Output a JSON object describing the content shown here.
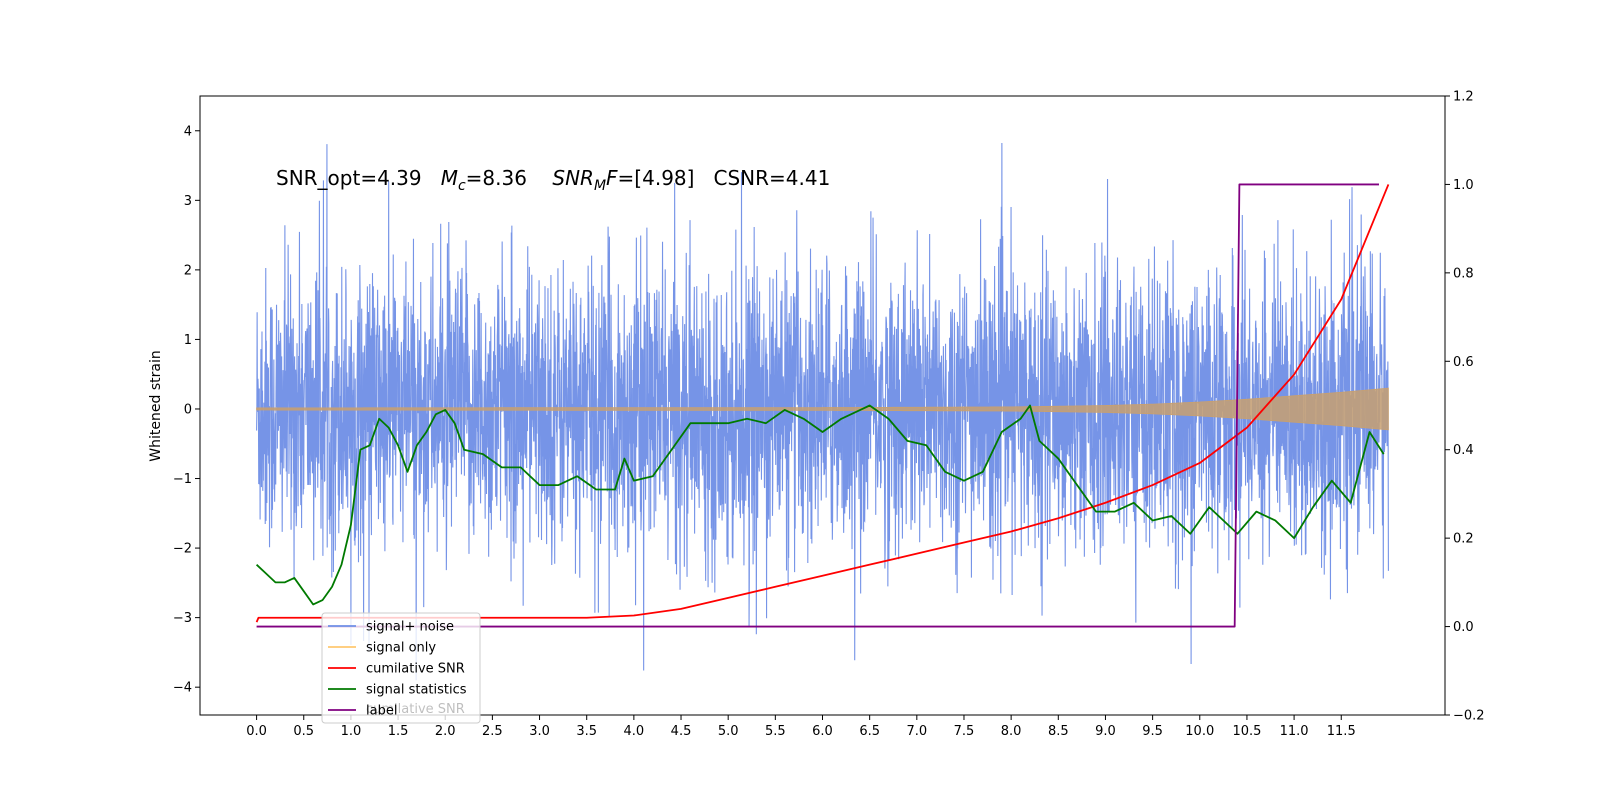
{
  "chart_data": {
    "type": "line",
    "title": "",
    "annotation": {
      "parts": [
        "SNR_opt=4.39   ",
        "M",
        "c",
        "=8.36    ",
        "SNR",
        "M",
        "F",
        "=[4.98]   CSNR=4.41"
      ]
    },
    "ylabel": "Whitened strain",
    "xlim": [
      -0.6,
      12.6
    ],
    "ylim": [
      -4.4,
      4.5
    ],
    "y2lim": [
      -0.2,
      1.2
    ],
    "x_ticks": [
      0.0,
      0.5,
      1.0,
      1.5,
      2.0,
      2.5,
      3.0,
      3.5,
      4.0,
      4.5,
      5.0,
      5.5,
      6.0,
      6.5,
      7.0,
      7.5,
      8.0,
      8.5,
      9.0,
      9.5,
      10.0,
      10.5,
      11.0,
      11.5
    ],
    "x_tick_labels": [
      "0.0",
      "0.5",
      "1.0",
      "1.5",
      "2.0",
      "2.5",
      "3.0",
      "3.5",
      "4.0",
      "4.5",
      "5.0",
      "5.5",
      "6.0",
      "6.5",
      "7.0",
      "7.5",
      "8.0",
      "8.5",
      "9.0",
      "9.5",
      "10.0",
      "10.5",
      "11.0",
      "11.5"
    ],
    "y_ticks": [
      -4,
      -3,
      -2,
      -1,
      0,
      1,
      2,
      3,
      4
    ],
    "y_tick_labels": [
      "−4",
      "−3",
      "−2",
      "−1",
      "0",
      "1",
      "2",
      "3",
      "4"
    ],
    "y2_ticks": [
      -0.2,
      0.0,
      0.2,
      0.4,
      0.6,
      0.8,
      1.0,
      1.2
    ],
    "y2_tick_labels": [
      "−0.2",
      "0.0",
      "0.2",
      "0.4",
      "0.6",
      "0.8",
      "1.0",
      "1.2"
    ],
    "grid": false,
    "legend_position": "bottom-left",
    "legend": [
      {
        "name": "signal+ noise",
        "color": "#6f8ee6"
      },
      {
        "name": "signal only",
        "color": "#ffc870"
      },
      {
        "name": "cumilative SNR",
        "color": "#ff0000"
      },
      {
        "name": "signal statistics",
        "color": "#007a00"
      },
      {
        "name": "label",
        "color": "#800080"
      }
    ],
    "legend_hidden_text": "cumilative SNR",
    "series": [
      {
        "name": "signal+ noise",
        "axis": "left",
        "color": "#6f8ee6",
        "style": "noise",
        "x_range": [
          0.0,
          12.0
        ],
        "value_range": [
          -3.9,
          4.1
        ]
      },
      {
        "name": "signal only",
        "axis": "left",
        "color": "#c8a070",
        "style": "chirp-envelope",
        "x": [
          0.0,
          4.0,
          6.0,
          7.0,
          8.0,
          8.5,
          9.0,
          9.5,
          10.0,
          10.5,
          11.0,
          11.5,
          12.0
        ],
        "amplitude": [
          0.015,
          0.02,
          0.02,
          0.025,
          0.03,
          0.04,
          0.05,
          0.07,
          0.1,
          0.14,
          0.19,
          0.24,
          0.3
        ]
      },
      {
        "name": "cumilative SNR",
        "axis": "right",
        "color": "#ff0000",
        "x": [
          0.0,
          0.02,
          1.0,
          2.0,
          3.0,
          3.5,
          4.0,
          4.5,
          5.0,
          5.5,
          6.0,
          6.5,
          7.0,
          7.5,
          8.0,
          8.5,
          9.0,
          9.5,
          10.0,
          10.5,
          11.0,
          11.5,
          12.0
        ],
        "values": [
          0.01,
          0.02,
          0.02,
          0.02,
          0.02,
          0.02,
          0.025,
          0.04,
          0.065,
          0.09,
          0.115,
          0.14,
          0.165,
          0.19,
          0.215,
          0.245,
          0.28,
          0.32,
          0.37,
          0.45,
          0.57,
          0.74,
          1.0
        ]
      },
      {
        "name": "signal statistics",
        "axis": "right",
        "color": "#007a00",
        "x": [
          0.0,
          0.1,
          0.2,
          0.3,
          0.4,
          0.5,
          0.6,
          0.7,
          0.8,
          0.9,
          1.0,
          1.1,
          1.2,
          1.3,
          1.4,
          1.5,
          1.6,
          1.7,
          1.8,
          1.9,
          2.0,
          2.1,
          2.2,
          2.4,
          2.6,
          2.8,
          3.0,
          3.2,
          3.4,
          3.6,
          3.8,
          3.9,
          4.0,
          4.2,
          4.4,
          4.6,
          4.8,
          5.0,
          5.2,
          5.4,
          5.6,
          5.8,
          6.0,
          6.2,
          6.4,
          6.5,
          6.7,
          6.9,
          7.1,
          7.3,
          7.5,
          7.7,
          7.9,
          8.1,
          8.2,
          8.3,
          8.5,
          8.7,
          8.9,
          9.1,
          9.3,
          9.5,
          9.7,
          9.9,
          10.1,
          10.3,
          10.4,
          10.6,
          10.8,
          11.0,
          11.2,
          11.4,
          11.6,
          11.8,
          11.95
        ],
        "values": [
          0.14,
          0.12,
          0.1,
          0.1,
          0.11,
          0.08,
          0.05,
          0.06,
          0.09,
          0.14,
          0.23,
          0.4,
          0.41,
          0.47,
          0.45,
          0.41,
          0.35,
          0.41,
          0.44,
          0.48,
          0.49,
          0.46,
          0.4,
          0.39,
          0.36,
          0.36,
          0.32,
          0.32,
          0.34,
          0.31,
          0.31,
          0.38,
          0.33,
          0.34,
          0.4,
          0.46,
          0.46,
          0.46,
          0.47,
          0.46,
          0.49,
          0.47,
          0.44,
          0.47,
          0.49,
          0.5,
          0.47,
          0.42,
          0.41,
          0.35,
          0.33,
          0.35,
          0.44,
          0.47,
          0.5,
          0.42,
          0.38,
          0.32,
          0.26,
          0.26,
          0.28,
          0.24,
          0.25,
          0.21,
          0.27,
          0.23,
          0.21,
          0.26,
          0.24,
          0.2,
          0.27,
          0.33,
          0.28,
          0.44,
          0.39
        ]
      },
      {
        "name": "label",
        "axis": "right",
        "color": "#800080",
        "x": [
          0.0,
          10.37,
          10.42,
          11.9
        ],
        "values": [
          0.0,
          0.0,
          1.0,
          1.0
        ]
      }
    ]
  }
}
